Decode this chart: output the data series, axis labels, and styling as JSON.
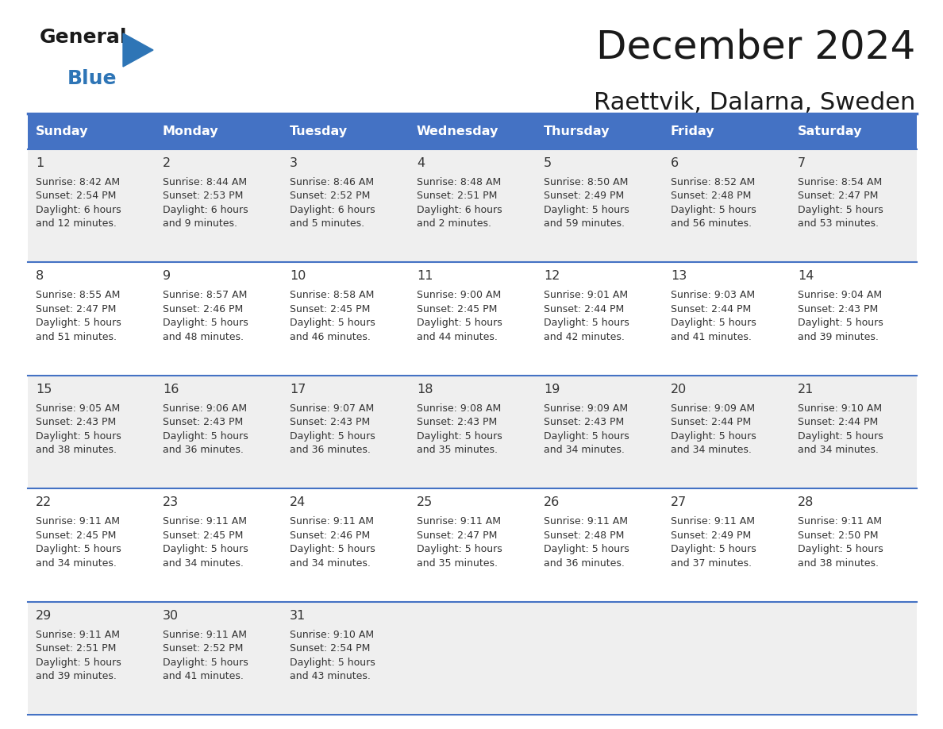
{
  "title": "December 2024",
  "subtitle": "Raettvik, Dalarna, Sweden",
  "days_of_week": [
    "Sunday",
    "Monday",
    "Tuesday",
    "Wednesday",
    "Thursday",
    "Friday",
    "Saturday"
  ],
  "header_bg": "#4472C4",
  "header_text_color": "#FFFFFF",
  "row_bg_odd": "#EFEFEF",
  "row_bg_even": "#FFFFFF",
  "cell_border_color": "#4472C4",
  "text_color": "#333333",
  "calendar_data": [
    [
      {
        "day": 1,
        "sunrise": "8:42 AM",
        "sunset": "2:54 PM",
        "daylight_h": "6 hours",
        "daylight_m": "and 12 minutes."
      },
      {
        "day": 2,
        "sunrise": "8:44 AM",
        "sunset": "2:53 PM",
        "daylight_h": "6 hours",
        "daylight_m": "and 9 minutes."
      },
      {
        "day": 3,
        "sunrise": "8:46 AM",
        "sunset": "2:52 PM",
        "daylight_h": "6 hours",
        "daylight_m": "and 5 minutes."
      },
      {
        "day": 4,
        "sunrise": "8:48 AM",
        "sunset": "2:51 PM",
        "daylight_h": "6 hours",
        "daylight_m": "and 2 minutes."
      },
      {
        "day": 5,
        "sunrise": "8:50 AM",
        "sunset": "2:49 PM",
        "daylight_h": "5 hours",
        "daylight_m": "and 59 minutes."
      },
      {
        "day": 6,
        "sunrise": "8:52 AM",
        "sunset": "2:48 PM",
        "daylight_h": "5 hours",
        "daylight_m": "and 56 minutes."
      },
      {
        "day": 7,
        "sunrise": "8:54 AM",
        "sunset": "2:47 PM",
        "daylight_h": "5 hours",
        "daylight_m": "and 53 minutes."
      }
    ],
    [
      {
        "day": 8,
        "sunrise": "8:55 AM",
        "sunset": "2:47 PM",
        "daylight_h": "5 hours",
        "daylight_m": "and 51 minutes."
      },
      {
        "day": 9,
        "sunrise": "8:57 AM",
        "sunset": "2:46 PM",
        "daylight_h": "5 hours",
        "daylight_m": "and 48 minutes."
      },
      {
        "day": 10,
        "sunrise": "8:58 AM",
        "sunset": "2:45 PM",
        "daylight_h": "5 hours",
        "daylight_m": "and 46 minutes."
      },
      {
        "day": 11,
        "sunrise": "9:00 AM",
        "sunset": "2:45 PM",
        "daylight_h": "5 hours",
        "daylight_m": "and 44 minutes."
      },
      {
        "day": 12,
        "sunrise": "9:01 AM",
        "sunset": "2:44 PM",
        "daylight_h": "5 hours",
        "daylight_m": "and 42 minutes."
      },
      {
        "day": 13,
        "sunrise": "9:03 AM",
        "sunset": "2:44 PM",
        "daylight_h": "5 hours",
        "daylight_m": "and 41 minutes."
      },
      {
        "day": 14,
        "sunrise": "9:04 AM",
        "sunset": "2:43 PM",
        "daylight_h": "5 hours",
        "daylight_m": "and 39 minutes."
      }
    ],
    [
      {
        "day": 15,
        "sunrise": "9:05 AM",
        "sunset": "2:43 PM",
        "daylight_h": "5 hours",
        "daylight_m": "and 38 minutes."
      },
      {
        "day": 16,
        "sunrise": "9:06 AM",
        "sunset": "2:43 PM",
        "daylight_h": "5 hours",
        "daylight_m": "and 36 minutes."
      },
      {
        "day": 17,
        "sunrise": "9:07 AM",
        "sunset": "2:43 PM",
        "daylight_h": "5 hours",
        "daylight_m": "and 36 minutes."
      },
      {
        "day": 18,
        "sunrise": "9:08 AM",
        "sunset": "2:43 PM",
        "daylight_h": "5 hours",
        "daylight_m": "and 35 minutes."
      },
      {
        "day": 19,
        "sunrise": "9:09 AM",
        "sunset": "2:43 PM",
        "daylight_h": "5 hours",
        "daylight_m": "and 34 minutes."
      },
      {
        "day": 20,
        "sunrise": "9:09 AM",
        "sunset": "2:44 PM",
        "daylight_h": "5 hours",
        "daylight_m": "and 34 minutes."
      },
      {
        "day": 21,
        "sunrise": "9:10 AM",
        "sunset": "2:44 PM",
        "daylight_h": "5 hours",
        "daylight_m": "and 34 minutes."
      }
    ],
    [
      {
        "day": 22,
        "sunrise": "9:11 AM",
        "sunset": "2:45 PM",
        "daylight_h": "5 hours",
        "daylight_m": "and 34 minutes."
      },
      {
        "day": 23,
        "sunrise": "9:11 AM",
        "sunset": "2:45 PM",
        "daylight_h": "5 hours",
        "daylight_m": "and 34 minutes."
      },
      {
        "day": 24,
        "sunrise": "9:11 AM",
        "sunset": "2:46 PM",
        "daylight_h": "5 hours",
        "daylight_m": "and 34 minutes."
      },
      {
        "day": 25,
        "sunrise": "9:11 AM",
        "sunset": "2:47 PM",
        "daylight_h": "5 hours",
        "daylight_m": "and 35 minutes."
      },
      {
        "day": 26,
        "sunrise": "9:11 AM",
        "sunset": "2:48 PM",
        "daylight_h": "5 hours",
        "daylight_m": "and 36 minutes."
      },
      {
        "day": 27,
        "sunrise": "9:11 AM",
        "sunset": "2:49 PM",
        "daylight_h": "5 hours",
        "daylight_m": "and 37 minutes."
      },
      {
        "day": 28,
        "sunrise": "9:11 AM",
        "sunset": "2:50 PM",
        "daylight_h": "5 hours",
        "daylight_m": "and 38 minutes."
      }
    ],
    [
      {
        "day": 29,
        "sunrise": "9:11 AM",
        "sunset": "2:51 PM",
        "daylight_h": "5 hours",
        "daylight_m": "and 39 minutes."
      },
      {
        "day": 30,
        "sunrise": "9:11 AM",
        "sunset": "2:52 PM",
        "daylight_h": "5 hours",
        "daylight_m": "and 41 minutes."
      },
      {
        "day": 31,
        "sunrise": "9:10 AM",
        "sunset": "2:54 PM",
        "daylight_h": "5 hours",
        "daylight_m": "and 43 minutes."
      },
      null,
      null,
      null,
      null
    ]
  ]
}
